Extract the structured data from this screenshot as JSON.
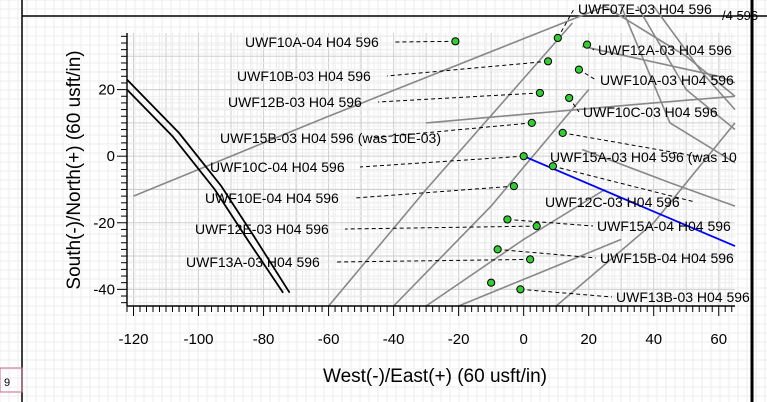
{
  "chart_data": {
    "type": "scatter",
    "xlabel": "West(-)/East(+) (60 usft/in)",
    "ylabel": "South(-)/North(+) (60 usft/in)",
    "xlim": [
      -122,
      65
    ],
    "ylim": [
      -45,
      37
    ],
    "x_ticks": [
      "-120",
      "-100",
      "-80",
      "-60",
      "-40",
      "-20",
      "0",
      "20",
      "40",
      "60"
    ],
    "y_ticks": [
      "-40",
      "-20",
      "0",
      "20"
    ],
    "grid": true,
    "stray_labels": {
      "top_right": "/4 596",
      "bottom_left": "9"
    },
    "points": [
      {
        "x": 10.5,
        "y": 35.5,
        "label": "UWF07E-03 H04 596"
      },
      {
        "x": -21,
        "y": 34.5,
        "label": "UWF10A-04 H04 596"
      },
      {
        "x": 19.5,
        "y": 33.5,
        "label": "UWF12A-03 H04 596"
      },
      {
        "x": 7.5,
        "y": 28.5,
        "label": "UWF10B-03 H04 596"
      },
      {
        "x": 17,
        "y": 26,
        "label": "UWF10A-03 H04 596"
      },
      {
        "x": 5,
        "y": 19,
        "label": "UWF12B-03 H04 596"
      },
      {
        "x": 14,
        "y": 17.5,
        "label": "UWF10C-03 H04 596"
      },
      {
        "x": 2.5,
        "y": 10,
        "label": "UWF15B-03 H04 596 (was 10E-03)"
      },
      {
        "x": 12,
        "y": 7,
        "label": "UWF15A-03 H04 596 (was 10"
      },
      {
        "x": 0,
        "y": 0,
        "label": "UWF10C-04 H04 596"
      },
      {
        "x": 9,
        "y": -3,
        "label": "UWF12C-03 H04 596"
      },
      {
        "x": -3,
        "y": -9,
        "label": "UWF10E-04 H04 596"
      },
      {
        "x": -5,
        "y": -19,
        "label": "UWF15A-04 H04 596"
      },
      {
        "x": 4,
        "y": -21,
        "label": "UWF12E-03 H04 596"
      },
      {
        "x": -8,
        "y": -28,
        "label": "UWF15B-04 H04 596"
      },
      {
        "x": 2,
        "y": -31,
        "label": "UWF13A-03 H04 596"
      },
      {
        "x": -10,
        "y": -38,
        "label": "UWF15B-04 H04 596"
      },
      {
        "x": -1,
        "y": -40,
        "label": "UWF13B-03 H04 596"
      }
    ],
    "series": [
      {
        "color": "#0000ff",
        "points": [
          [
            0,
            0
          ],
          [
            65,
            -27
          ]
        ]
      },
      {
        "color": "#000000",
        "points": [
          [
            -122,
            20
          ],
          [
            -108,
            6
          ],
          [
            -95,
            -10
          ],
          [
            -85,
            -25
          ],
          [
            -74,
            -41
          ]
        ]
      },
      {
        "color": "#000000",
        "points": [
          [
            -122,
            23
          ],
          [
            -106,
            7
          ],
          [
            -93,
            -9
          ],
          [
            -83,
            -24
          ],
          [
            -72,
            -41
          ]
        ]
      }
    ],
    "background_traces": [
      [
        [
          -120,
          -12
        ],
        [
          -60,
          12
        ],
        [
          25,
          45
        ]
      ],
      [
        [
          -60,
          -45
        ],
        [
          -30,
          -10
        ],
        [
          15,
          40
        ]
      ],
      [
        [
          -40,
          -45
        ],
        [
          -10,
          -15
        ],
        [
          20,
          20
        ]
      ],
      [
        [
          -30,
          -45
        ],
        [
          0,
          -25
        ],
        [
          25,
          -10
        ]
      ],
      [
        [
          -20,
          -45
        ],
        [
          5,
          -35
        ],
        [
          30,
          -25
        ]
      ],
      [
        [
          10,
          -45
        ],
        [
          40,
          -20
        ],
        [
          65,
          10
        ]
      ],
      [
        [
          25,
          45
        ],
        [
          50,
          30
        ],
        [
          65,
          18
        ]
      ],
      [
        [
          30,
          45
        ],
        [
          45,
          10
        ],
        [
          65,
          -2
        ]
      ],
      [
        [
          35,
          45
        ],
        [
          50,
          20
        ],
        [
          65,
          8
        ]
      ],
      [
        [
          40,
          45
        ],
        [
          55,
          25
        ],
        [
          65,
          14
        ]
      ],
      [
        [
          18,
          2
        ],
        [
          45,
          -8
        ],
        [
          65,
          -15
        ]
      ],
      [
        [
          18,
          33
        ],
        [
          60,
          24
        ],
        [
          65,
          22
        ]
      ],
      [
        [
          -30,
          10
        ],
        [
          40,
          16
        ],
        [
          65,
          18
        ]
      ]
    ],
    "point_color": "#33cc33",
    "trace_color": "#888888"
  }
}
